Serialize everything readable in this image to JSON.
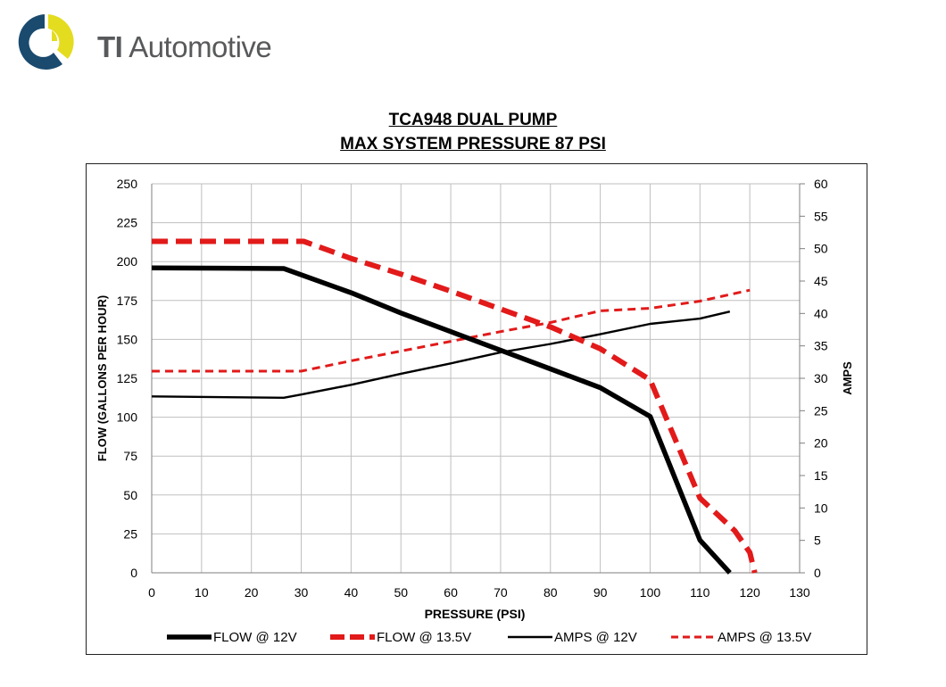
{
  "brand": {
    "name": "TI Automotive",
    "name_bold": "TI",
    "name_regular": "Automotive"
  },
  "chart_data": {
    "type": "line",
    "title": [
      "TCA948 DUAL PUMP ",
      "MAX SYSTEM PRESSURE 87 PSI"
    ],
    "xlabel": "PRESSURE (PSI)",
    "ylabel": "FLOW (GALLONS PER HOUR)",
    "y2label": "AMPS",
    "xlim": [
      0,
      130
    ],
    "ylim": [
      0,
      250
    ],
    "y2lim": [
      0,
      60
    ],
    "xticks": [
      0,
      10,
      20,
      30,
      40,
      50,
      60,
      70,
      80,
      90,
      100,
      110,
      120,
      130
    ],
    "yticks": [
      0,
      25,
      50,
      75,
      100,
      125,
      150,
      175,
      200,
      225,
      250
    ],
    "y2ticks": [
      0,
      5,
      10,
      15,
      20,
      25,
      30,
      35,
      40,
      45,
      50,
      55,
      60
    ],
    "grid": true,
    "legend_position": "bottom",
    "series": [
      {
        "name": "FLOW @ 12V",
        "axis": "left",
        "color": "#000000",
        "style": "solid-thick",
        "points": [
          [
            0,
            196
          ],
          [
            26.5,
            195.5
          ],
          [
            40,
            180
          ],
          [
            50,
            167
          ],
          [
            60,
            155
          ],
          [
            70,
            143
          ],
          [
            80,
            131
          ],
          [
            90,
            119
          ],
          [
            100,
            100.5
          ],
          [
            110,
            21
          ],
          [
            116,
            0
          ]
        ]
      },
      {
        "name": "FLOW @ 13.5V",
        "axis": "left",
        "color": "#e21a1a",
        "style": "dashed-thick",
        "points": [
          [
            0,
            213
          ],
          [
            20,
            213
          ],
          [
            30.5,
            213
          ],
          [
            40,
            202
          ],
          [
            50,
            192
          ],
          [
            60,
            181
          ],
          [
            70,
            169.5
          ],
          [
            80,
            158
          ],
          [
            90,
            144
          ],
          [
            100,
            124
          ],
          [
            110,
            48
          ],
          [
            117,
            27
          ],
          [
            120,
            13
          ],
          [
            121,
            0
          ]
        ]
      },
      {
        "name": "AMPS @ 12V",
        "axis": "right",
        "color": "#000000",
        "style": "solid-thin",
        "points": [
          [
            0,
            27.2
          ],
          [
            26.5,
            27
          ],
          [
            30,
            27.5
          ],
          [
            40,
            29
          ],
          [
            50,
            30.7
          ],
          [
            60,
            32.3
          ],
          [
            70,
            34
          ],
          [
            80,
            35.3
          ],
          [
            90,
            36.8
          ],
          [
            100,
            38.4
          ],
          [
            110,
            39.2
          ],
          [
            116,
            40.3
          ]
        ]
      },
      {
        "name": "AMPS @ 13.5V",
        "axis": "right",
        "color": "#e21a1a",
        "style": "dashed-thin",
        "points": [
          [
            0,
            31.1
          ],
          [
            30,
            31.1
          ],
          [
            40,
            32.7
          ],
          [
            50,
            34.2
          ],
          [
            60,
            35.7
          ],
          [
            70,
            37.2
          ],
          [
            80,
            38.6
          ],
          [
            90,
            40.4
          ],
          [
            100,
            40.8
          ],
          [
            110,
            41.9
          ],
          [
            120,
            43.6
          ]
        ]
      }
    ]
  }
}
